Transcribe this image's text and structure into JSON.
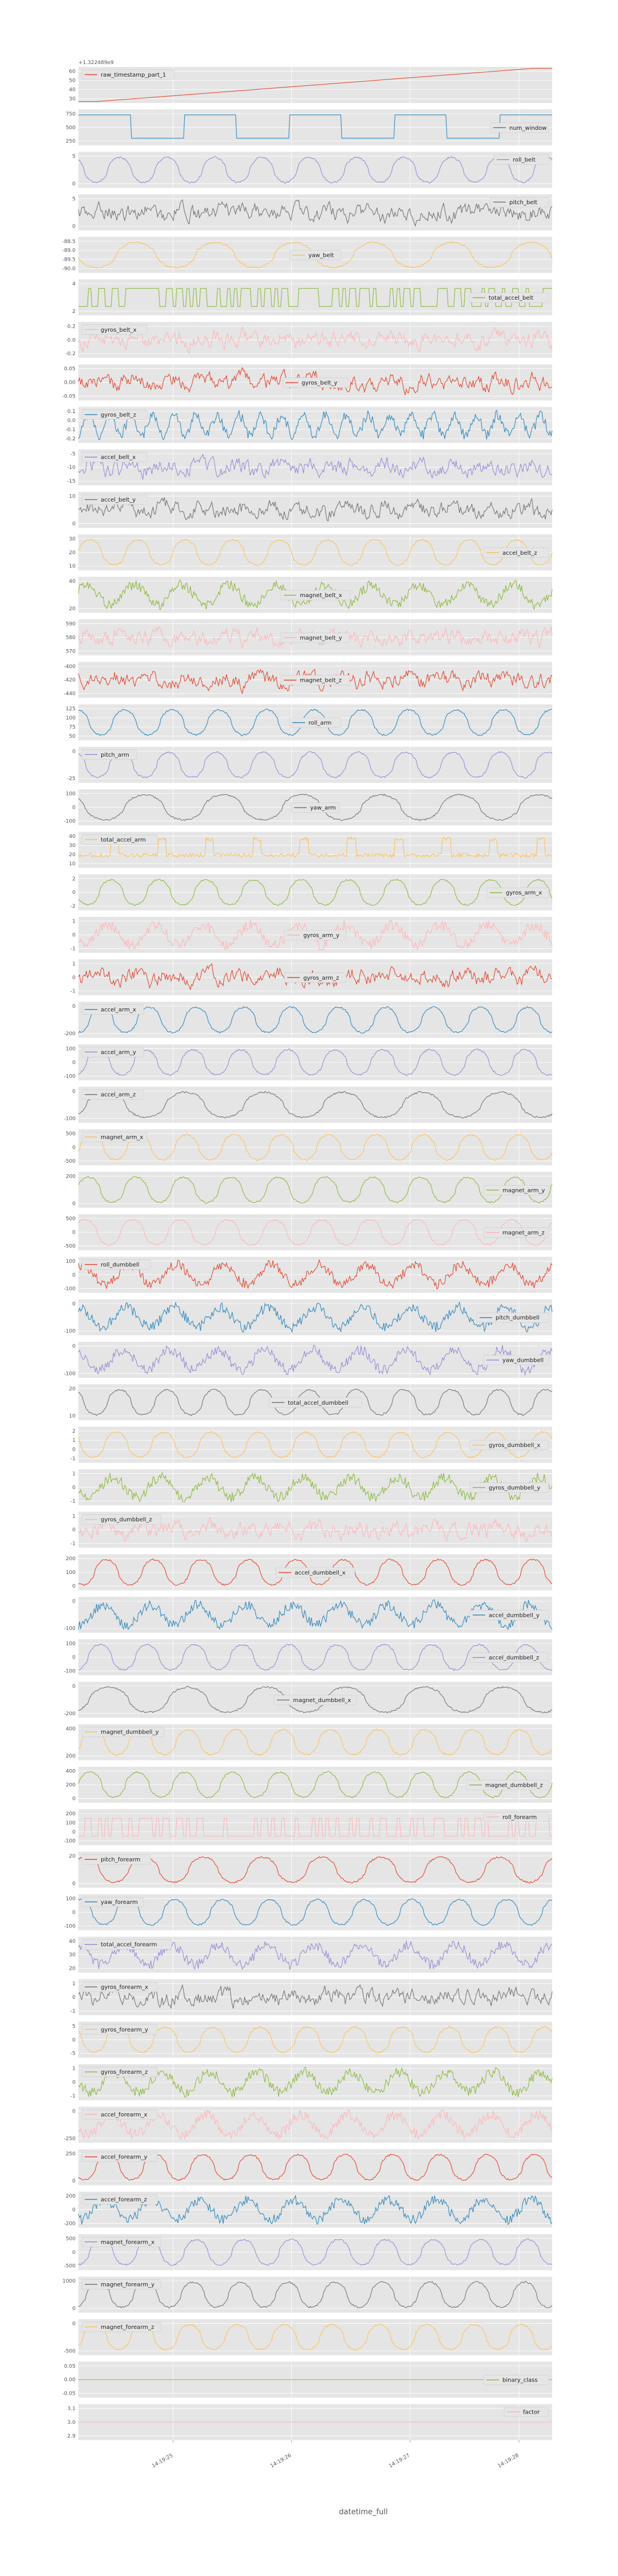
{
  "figure": {
    "offset_label": "+1.322489e9",
    "xlabel": "datetime_full",
    "x_tick_labels": [
      "14:19:25",
      "14:19:26",
      "14:19:27",
      "14:19:28"
    ]
  },
  "chart_data": {
    "type": "line",
    "title": "",
    "xlabel": "datetime_full",
    "grid": true,
    "subplots": [
      {
        "name": "raw_timestamp_part_1",
        "color": "#E24A33",
        "legend_pos": "upper-left",
        "yticks": [
          "60",
          "50",
          "40",
          "30"
        ],
        "kind": "ramp",
        "ylim": [
          25,
          65
        ]
      },
      {
        "name": "num_window",
        "color": "#348ABD",
        "legend_pos": "right",
        "yticks": [
          "750",
          "500",
          "250"
        ],
        "kind": "steps",
        "ylim": [
          200,
          800
        ]
      },
      {
        "name": "roll_belt",
        "color": "#988ED5",
        "legend_pos": "upper-right",
        "yticks": [
          "5",
          "0"
        ],
        "kind": "wave",
        "freq": 10
      },
      {
        "name": "pitch_belt",
        "color": "#777777",
        "legend_pos": "upper-right",
        "yticks": [
          "5",
          "0"
        ],
        "kind": "noise"
      },
      {
        "name": "yaw_belt",
        "color": "#FBC15E",
        "legend_pos": "center",
        "yticks": [
          "-88.5",
          "-89.0",
          "-89.5",
          "-90.0"
        ],
        "kind": "wave",
        "freq": 6
      },
      {
        "name": "total_accel_belt",
        "color": "#8EBA42",
        "legend_pos": "right",
        "yticks": [
          "4",
          "2"
        ],
        "kind": "binary"
      },
      {
        "name": "gyros_belt_x",
        "color": "#FFB5B8",
        "legend_pos": "upper-left",
        "yticks": [
          "0.2",
          "0.0",
          "-0.2"
        ],
        "kind": "noise"
      },
      {
        "name": "gyros_belt_y",
        "color": "#E24A33",
        "legend_pos": "center",
        "yticks": [
          "0.05",
          "0.00",
          "-0.05"
        ],
        "kind": "noise"
      },
      {
        "name": "gyros_belt_z",
        "color": "#348ABD",
        "legend_pos": "upper-left",
        "yticks": [
          "0.1",
          "0.0",
          "-0.1",
          "-0.2"
        ],
        "kind": "wave_noise",
        "freq": 22
      },
      {
        "name": "accel_belt_x",
        "color": "#988ED5",
        "legend_pos": "upper-left",
        "yticks": [
          "-5",
          "-10",
          "-15"
        ],
        "kind": "noise"
      },
      {
        "name": "accel_belt_y",
        "color": "#777777",
        "legend_pos": "upper-left",
        "yticks": [
          "10",
          "0"
        ],
        "kind": "noise"
      },
      {
        "name": "accel_belt_z",
        "color": "#FBC15E",
        "legend_pos": "right",
        "yticks": [
          "30",
          "20",
          "10"
        ],
        "kind": "wave",
        "freq": 10
      },
      {
        "name": "magnet_belt_x",
        "color": "#8EBA42",
        "legend_pos": "center",
        "yticks": [
          "40",
          "20"
        ],
        "kind": "wave_noise",
        "freq": 10
      },
      {
        "name": "magnet_belt_y",
        "color": "#FFB5B8",
        "legend_pos": "center",
        "yticks": [
          "590",
          "580",
          "570"
        ],
        "kind": "noise"
      },
      {
        "name": "magnet_belt_z",
        "color": "#E24A33",
        "legend_pos": "center",
        "yticks": [
          "-400",
          "-420",
          "-440"
        ],
        "kind": "noise"
      },
      {
        "name": "roll_arm",
        "color": "#348ABD",
        "legend_pos": "center",
        "yticks": [
          "125",
          "100",
          "75",
          "50"
        ],
        "kind": "wave",
        "freq": 10
      },
      {
        "name": "pitch_arm",
        "color": "#988ED5",
        "legend_pos": "upper-left",
        "yticks": [
          "0",
          "-25"
        ],
        "kind": "wave",
        "freq": 10
      },
      {
        "name": "yaw_arm",
        "color": "#777777",
        "legend_pos": "center",
        "yticks": [
          "100",
          "0",
          "-100"
        ],
        "kind": "wave",
        "freq": 6
      },
      {
        "name": "total_accel_arm",
        "color": "#FBC15E",
        "legend_pos": "upper-left",
        "yticks": [
          "40",
          "30",
          "20",
          "10"
        ],
        "kind": "spikes",
        "freq": 10
      },
      {
        "name": "gyros_arm_x",
        "color": "#8EBA42",
        "legend_pos": "right",
        "yticks": [
          "2",
          "0",
          "-2"
        ],
        "kind": "wave",
        "freq": 10
      },
      {
        "name": "gyros_arm_y",
        "color": "#FFB5B8",
        "legend_pos": "center",
        "yticks": [
          "1",
          "0",
          "-1"
        ],
        "kind": "wave_noise",
        "freq": 10
      },
      {
        "name": "gyros_arm_z",
        "color": "#E24A33",
        "legend_pos": "center",
        "yticks": [
          "1",
          "0",
          "-1"
        ],
        "kind": "noise"
      },
      {
        "name": "accel_arm_x",
        "color": "#348ABD",
        "legend_pos": "upper-left",
        "yticks": [
          "0",
          "-200"
        ],
        "kind": "wave",
        "freq": 10
      },
      {
        "name": "accel_arm_y",
        "color": "#988ED5",
        "legend_pos": "upper-left",
        "yticks": [
          "100",
          "0",
          "-100"
        ],
        "kind": "wave",
        "freq": 10
      },
      {
        "name": "accel_arm_z",
        "color": "#777777",
        "legend_pos": "upper-left",
        "yticks": [
          "0",
          "-100"
        ],
        "kind": "wave",
        "freq": 6
      },
      {
        "name": "magnet_arm_x",
        "color": "#FBC15E",
        "legend_pos": "upper-left",
        "yticks": [
          "500",
          "0",
          "-500"
        ],
        "kind": "wave",
        "freq": 10
      },
      {
        "name": "magnet_arm_y",
        "color": "#8EBA42",
        "legend_pos": "right",
        "yticks": [
          "200",
          "0"
        ],
        "kind": "wave",
        "freq": 10
      },
      {
        "name": "magnet_arm_z",
        "color": "#FFB5B8",
        "legend_pos": "right",
        "yticks": [
          "500",
          "0",
          "-500"
        ],
        "kind": "wave",
        "freq": 10
      },
      {
        "name": "roll_dumbbell",
        "color": "#E24A33",
        "legend_pos": "upper-left",
        "yticks": [
          "100",
          "0",
          "-100"
        ],
        "kind": "wave_noise",
        "freq": 10
      },
      {
        "name": "pitch_dumbbell",
        "color": "#348ABD",
        "legend_pos": "right",
        "yticks": [
          "0",
          "-100"
        ],
        "kind": "wave_noise",
        "freq": 10
      },
      {
        "name": "yaw_dumbbell",
        "color": "#988ED5",
        "legend_pos": "right",
        "yticks": [
          "0",
          "-100"
        ],
        "kind": "wave_noise",
        "freq": 10
      },
      {
        "name": "total_accel_dumbbell",
        "color": "#777777",
        "legend_pos": "center",
        "yticks": [
          "20",
          "10"
        ],
        "kind": "wave",
        "freq": 10
      },
      {
        "name": "gyros_dumbbell_x",
        "color": "#FBC15E",
        "legend_pos": "right",
        "yticks": [
          "2",
          "1",
          "0",
          "-1"
        ],
        "kind": "wave",
        "freq": 10
      },
      {
        "name": "gyros_dumbbell_y",
        "color": "#8EBA42",
        "legend_pos": "right",
        "yticks": [
          "1",
          "0",
          "-1"
        ],
        "kind": "wave_noise",
        "freq": 10
      },
      {
        "name": "gyros_dumbbell_z",
        "color": "#FFB5B8",
        "legend_pos": "upper-left",
        "yticks": [
          "1",
          "0",
          "-1"
        ],
        "kind": "noise"
      },
      {
        "name": "accel_dumbbell_x",
        "color": "#E24A33",
        "legend_pos": "center",
        "yticks": [
          "200",
          "100",
          "0"
        ],
        "kind": "wave",
        "freq": 10
      },
      {
        "name": "accel_dumbbell_y",
        "color": "#348ABD",
        "legend_pos": "right",
        "yticks": [
          "0",
          "-100"
        ],
        "kind": "wave_noise",
        "freq": 10
      },
      {
        "name": "accel_dumbbell_z",
        "color": "#988ED5",
        "legend_pos": "right",
        "yticks": [
          "100",
          "0",
          "-100"
        ],
        "kind": "wave",
        "freq": 10
      },
      {
        "name": "magnet_dumbbell_x",
        "color": "#777777",
        "legend_pos": "center",
        "yticks": [
          "0",
          "-200"
        ],
        "kind": "wave",
        "freq": 6
      },
      {
        "name": "magnet_dumbbell_y",
        "color": "#FBC15E",
        "legend_pos": "upper-left",
        "yticks": [
          "400",
          "200"
        ],
        "kind": "wave",
        "freq": 10
      },
      {
        "name": "magnet_dumbbell_z",
        "color": "#8EBA42",
        "legend_pos": "right",
        "yticks": [
          "400",
          "200",
          "0"
        ],
        "kind": "wave",
        "freq": 10
      },
      {
        "name": "roll_forearm",
        "color": "#FFB5B8",
        "legend_pos": "upper-right",
        "yticks": [
          "200",
          "100",
          "0",
          "-100"
        ],
        "kind": "binary"
      },
      {
        "name": "pitch_forearm",
        "color": "#E24A33",
        "legend_pos": "upper-left",
        "yticks": [
          "20",
          "0"
        ],
        "kind": "wave",
        "freq": 8
      },
      {
        "name": "yaw_forearm",
        "color": "#348ABD",
        "legend_pos": "upper-left",
        "yticks": [
          "100",
          "0",
          "-100"
        ],
        "kind": "wave",
        "freq": 10
      },
      {
        "name": "total_accel_forearm",
        "color": "#988ED5",
        "legend_pos": "upper-left",
        "yticks": [
          "40",
          "30",
          "20"
        ],
        "kind": "wave_noise",
        "freq": 10
      },
      {
        "name": "gyros_forearm_x",
        "color": "#777777",
        "legend_pos": "upper-left",
        "yticks": [
          "1",
          "0",
          "-1"
        ],
        "kind": "noise"
      },
      {
        "name": "gyros_forearm_y",
        "color": "#FBC15E",
        "legend_pos": "upper-left",
        "yticks": [
          "5",
          "0",
          "-5"
        ],
        "kind": "wave",
        "freq": 10
      },
      {
        "name": "gyros_forearm_z",
        "color": "#8EBA42",
        "legend_pos": "upper-left",
        "yticks": [
          "1",
          "0",
          "-1"
        ],
        "kind": "wave_noise",
        "freq": 10
      },
      {
        "name": "accel_forearm_x",
        "color": "#FFB5B8",
        "legend_pos": "upper-left",
        "yticks": [
          "0",
          "-250"
        ],
        "kind": "wave_noise",
        "freq": 10
      },
      {
        "name": "accel_forearm_y",
        "color": "#E24A33",
        "legend_pos": "upper-left",
        "yticks": [
          "250",
          "0"
        ],
        "kind": "wave",
        "freq": 10
      },
      {
        "name": "accel_forearm_z",
        "color": "#348ABD",
        "legend_pos": "upper-left",
        "yticks": [
          "200",
          "0",
          "-200"
        ],
        "kind": "wave_noise",
        "freq": 10
      },
      {
        "name": "magnet_forearm_x",
        "color": "#988ED5",
        "legend_pos": "upper-left",
        "yticks": [
          "500",
          "0",
          "-500"
        ],
        "kind": "wave",
        "freq": 10
      },
      {
        "name": "magnet_forearm_y",
        "color": "#777777",
        "legend_pos": "upper-left",
        "yticks": [
          "1000",
          "0"
        ],
        "kind": "wave",
        "freq": 10
      },
      {
        "name": "magnet_forearm_z",
        "color": "#FBC15E",
        "legend_pos": "upper-left",
        "yticks": [
          "0",
          "-500"
        ],
        "kind": "wave",
        "freq": 10
      },
      {
        "name": "binary_class",
        "color": "#8EBA42",
        "legend_pos": "right",
        "yticks": [
          "0.05",
          "0.00",
          "-0.05"
        ],
        "kind": "flat"
      },
      {
        "name": "factor",
        "color": "#FFB5B8",
        "legend_pos": "upper-right",
        "yticks": [
          "3.1",
          "3.0",
          "2.9"
        ],
        "kind": "flat"
      }
    ]
  }
}
